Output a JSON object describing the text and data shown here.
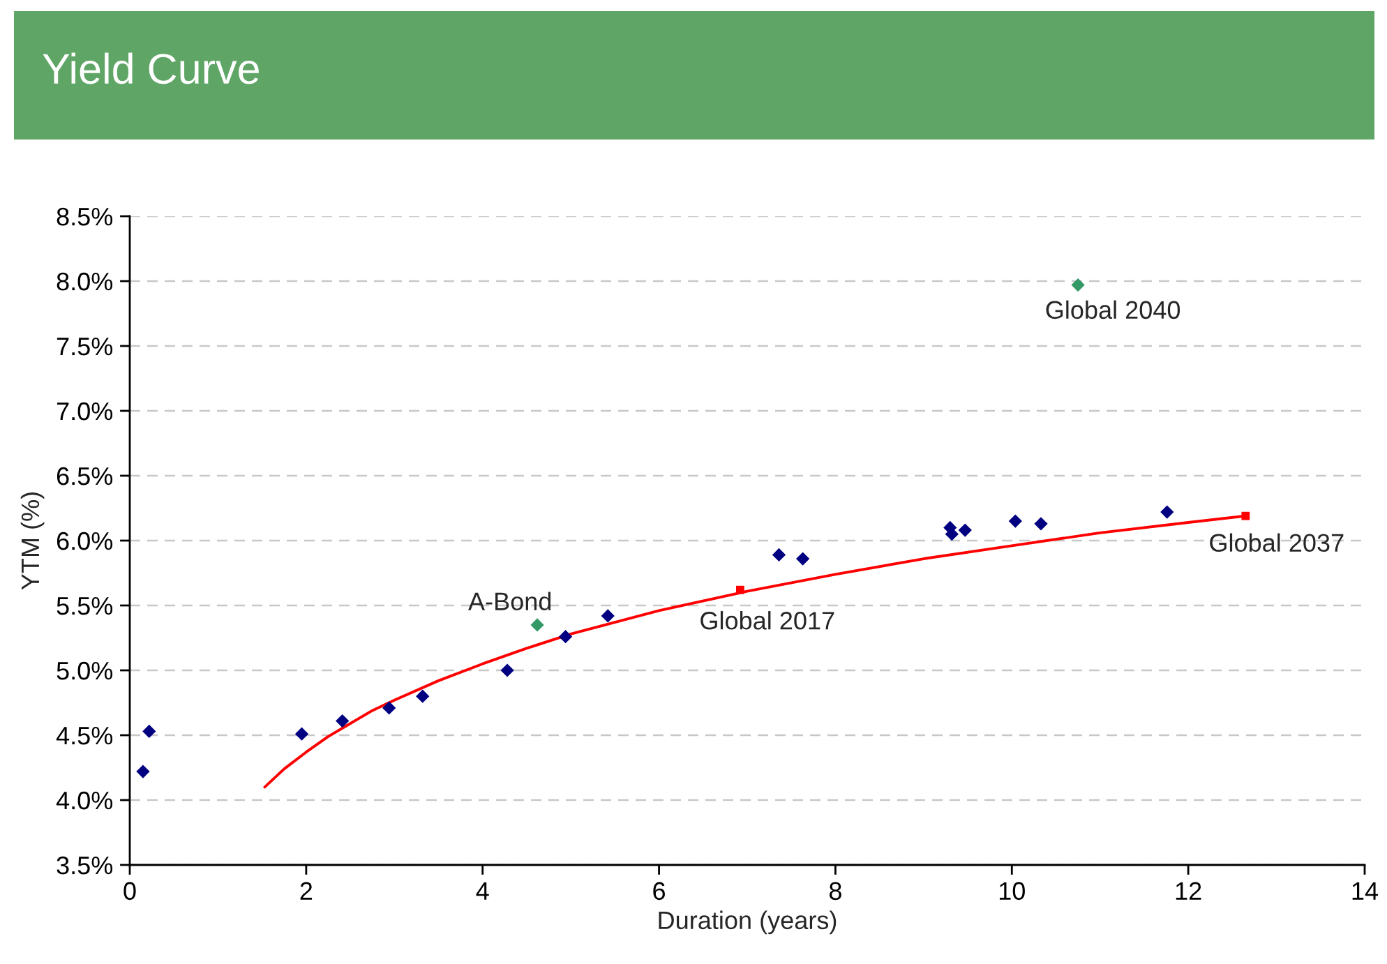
{
  "chart_data": {
    "type": "scatter",
    "title": "Yield Curve",
    "xlabel": "Duration (years)",
    "ylabel": "YTM (%)",
    "xlim": [
      0,
      14
    ],
    "xticks": [
      0,
      2,
      4,
      6,
      8,
      10,
      12,
      14
    ],
    "ylim": [
      3.5,
      8.5
    ],
    "yticks": [
      {
        "value": 3.5,
        "label": "3.5%"
      },
      {
        "value": 4.0,
        "label": "4.0%"
      },
      {
        "value": 4.5,
        "label": "4.5%"
      },
      {
        "value": 5.0,
        "label": "5.0%"
      },
      {
        "value": 5.5,
        "label": "5.5%"
      },
      {
        "value": 6.0,
        "label": "6.0%"
      },
      {
        "value": 6.5,
        "label": "6.5%"
      },
      {
        "value": 7.0,
        "label": "7.0%"
      },
      {
        "value": 7.5,
        "label": "7.5%"
      },
      {
        "value": 8.0,
        "label": "8.0%"
      },
      {
        "value": 8.5,
        "label": "8.5%"
      }
    ],
    "grid": "y",
    "marker": "diamond",
    "series": [
      {
        "type": "line",
        "color": "#ff0000",
        "marker": "none",
        "line_style": "solid",
        "x": [
          1.53,
          1.75,
          2,
          2.25,
          2.5,
          2.75,
          3,
          3.5,
          4,
          4.5,
          5,
          5.5,
          6,
          7,
          8,
          9,
          10,
          11,
          12,
          12.65
        ],
        "values": [
          4.1,
          4.24,
          4.37,
          4.49,
          4.59,
          4.69,
          4.77,
          4.92,
          5.05,
          5.17,
          5.28,
          5.37,
          5.46,
          5.61,
          5.74,
          5.86,
          5.96,
          6.06,
          6.14,
          6.19
        ]
      },
      {
        "color": "#000080",
        "x": [
          0.15,
          0.22,
          1.95,
          2.41,
          2.94,
          3.32,
          4.28,
          4.94,
          5.42,
          7.36,
          7.63,
          9.3,
          9.32,
          9.47,
          10.04,
          10.33,
          11.76
        ],
        "values": [
          4.22,
          4.53,
          4.51,
          4.61,
          4.71,
          4.8,
          5.0,
          5.26,
          5.42,
          5.89,
          5.86,
          6.1,
          6.05,
          6.08,
          6.15,
          6.13,
          6.22
        ]
      },
      {
        "color": "#339966",
        "x": [
          4.62,
          10.75
        ],
        "values": [
          5.35,
          7.97
        ]
      },
      {
        "color": "#ff0000",
        "marker": "square",
        "x": [
          6.92,
          12.65
        ],
        "values": [
          5.62,
          6.19
        ]
      }
    ],
    "annotations": [
      {
        "text": "A-Bond",
        "x": 4.62,
        "y": 5.35
      },
      {
        "text": "Global 2017",
        "x": 6.92,
        "y": 5.62
      },
      {
        "text": "Global 2040",
        "x": 10.75,
        "y": 7.97
      },
      {
        "text": "Global 2037",
        "x": 12.65,
        "y": 6.19
      }
    ]
  }
}
